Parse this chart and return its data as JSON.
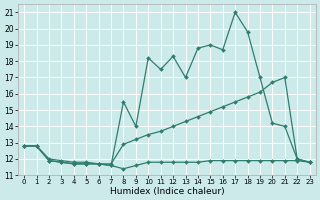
{
  "xlabel": "Humidex (Indice chaleur)",
  "bg_color": "#cdeaea",
  "grid_color": "#b0d8d8",
  "line_color": "#2e7d6e",
  "xlim": [
    -0.5,
    23.5
  ],
  "ylim": [
    11,
    21.5
  ],
  "yticks": [
    11,
    12,
    13,
    14,
    15,
    16,
    17,
    18,
    19,
    20,
    21
  ],
  "xticks": [
    0,
    1,
    2,
    3,
    4,
    5,
    6,
    7,
    8,
    9,
    10,
    11,
    12,
    13,
    14,
    15,
    16,
    17,
    18,
    19,
    20,
    21,
    22,
    23
  ],
  "line1_x": [
    0,
    1,
    2,
    3,
    4,
    5,
    6,
    7,
    8,
    9,
    10,
    11,
    12,
    13,
    14,
    15,
    16,
    17,
    18,
    19,
    20,
    21,
    22,
    23
  ],
  "line1_y": [
    12.8,
    12.8,
    11.9,
    11.8,
    11.7,
    11.7,
    11.7,
    11.6,
    11.4,
    11.6,
    11.8,
    11.8,
    11.8,
    11.8,
    11.8,
    11.9,
    11.9,
    11.9,
    11.9,
    11.9,
    11.9,
    11.9,
    11.9,
    11.8
  ],
  "line2_x": [
    0,
    1,
    2,
    3,
    4,
    5,
    6,
    7,
    8,
    9,
    10,
    11,
    12,
    13,
    14,
    15,
    16,
    17,
    18,
    19,
    20,
    21,
    22,
    23
  ],
  "line2_y": [
    12.8,
    12.8,
    12.0,
    11.9,
    11.8,
    11.8,
    11.7,
    11.7,
    12.9,
    13.2,
    13.5,
    13.7,
    14.0,
    14.3,
    14.6,
    14.9,
    15.2,
    15.5,
    15.8,
    16.1,
    16.7,
    17.0,
    12.0,
    11.8
  ],
  "line3_x": [
    0,
    1,
    2,
    3,
    4,
    5,
    6,
    7,
    8,
    9,
    10,
    11,
    12,
    13,
    14,
    15,
    16,
    17,
    18,
    19,
    20,
    21,
    22,
    23
  ],
  "line3_y": [
    12.8,
    12.8,
    11.9,
    11.8,
    11.7,
    11.7,
    11.7,
    11.6,
    15.5,
    14.0,
    18.2,
    17.5,
    18.3,
    17.0,
    18.8,
    19.0,
    18.7,
    21.0,
    19.8,
    17.0,
    14.2,
    14.0,
    12.0,
    11.8
  ]
}
